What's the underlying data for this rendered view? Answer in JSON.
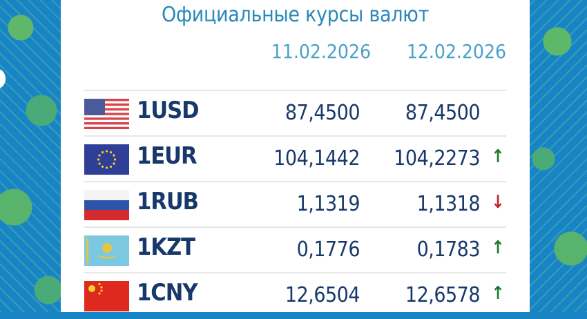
{
  "title": "Официальные курсы валют",
  "dates": [
    "11.02.2026",
    "12.02.2026"
  ],
  "colors": {
    "up": "#1f7a2e",
    "down": "#c0282d",
    "text": "#17386a",
    "title": "#2a88b8"
  },
  "rows": [
    {
      "code": "1USD",
      "flag": "us-flag",
      "prev": "87,4500",
      "curr": "87,4500",
      "trend": "none",
      "arrow": ""
    },
    {
      "code": "1EUR",
      "flag": "eu-flag",
      "prev": "104,1442",
      "curr": "104,2273",
      "trend": "up",
      "arrow": "↑"
    },
    {
      "code": "1RUB",
      "flag": "ru-flag",
      "prev": "1,1319",
      "curr": "1,1318",
      "trend": "down",
      "arrow": "↓"
    },
    {
      "code": "1KZT",
      "flag": "kz-flag",
      "prev": "0,1776",
      "curr": "0,1783",
      "trend": "up",
      "arrow": "↑"
    },
    {
      "code": "1CNY",
      "flag": "cn-flag",
      "prev": "12,6504",
      "curr": "12,6578",
      "trend": "up",
      "arrow": "↑"
    }
  ]
}
